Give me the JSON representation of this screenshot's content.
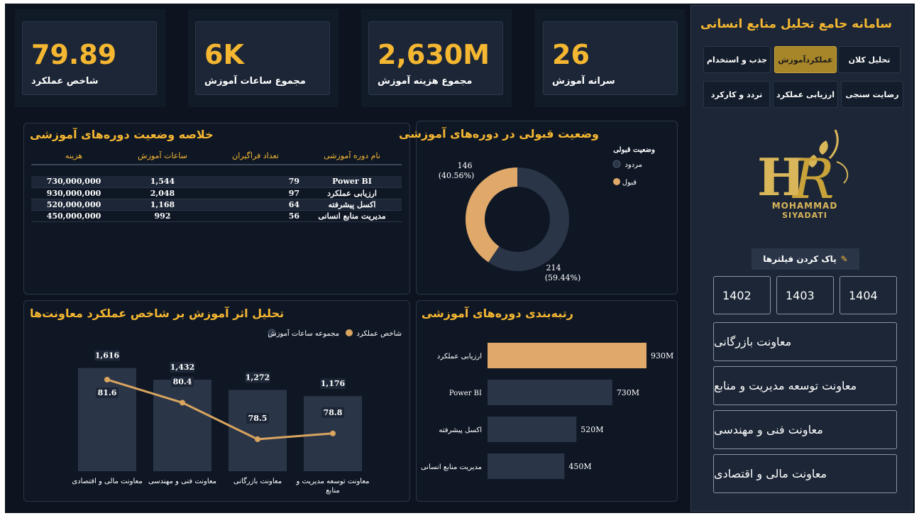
{
  "kpis": [
    {
      "value": "26",
      "label": "سرانه آموزش"
    },
    {
      "value": "2,630M",
      "label": "مجموع هزینه آموزش"
    },
    {
      "value": "6K",
      "label": "مجموع ساعات آموزش"
    },
    {
      "value": "79.89",
      "label": "شاخص عملکرد"
    }
  ],
  "summary": {
    "title": "خلاصه وضعیت دوره‌های آموزشی",
    "headers": [
      "نام دوره آموزشی",
      "تعداد فراگیران",
      "ساعات آموزش",
      "هزینه"
    ],
    "rows": [
      [
        "Power BI",
        "79",
        "1,544",
        "730,000,000"
      ],
      [
        "ارزیابی عملکرد",
        "97",
        "2,048",
        "930,000,000"
      ],
      [
        "اکسل پیشرفته",
        "64",
        "1,168",
        "520,000,000"
      ],
      [
        "مدیریت منابع انسانی",
        "56",
        "992",
        "450,000,000"
      ]
    ]
  },
  "acceptance": {
    "title": "وضعیت قبولی در دوره‌های آموزشی",
    "legend_title": "وضعیت قبولی",
    "legend": [
      {
        "name": "مردود",
        "color": "#2b3548"
      },
      {
        "name": "قبول",
        "color": "#e0a96a"
      }
    ],
    "label_accept_count": "146",
    "label_accept_pct": "(40.56%)",
    "label_reject_count": "214",
    "label_reject_pct": "(59.44%)"
  },
  "impact": {
    "title": "تحلیل اثر آموزش بر شاخص عملکرد معاونت‌ها",
    "legend_perf": "شاخص عملکرد",
    "legend_hours": "مجموعه ساعات آموزش",
    "bar_color": "#2b3548",
    "line_color": "#d9a55f"
  },
  "ranking": {
    "title": "رتبه‌بندی دوره‌های آموزشی",
    "highlight": "#e0a96a",
    "bar_color": "#2b3548"
  },
  "chart_data": [
    {
      "type": "pie",
      "title": "وضعیت قبولی در دوره‌های آموزشی",
      "labels": [
        "مردود",
        "قبول"
      ],
      "values": [
        214,
        146
      ],
      "percentages": [
        59.44,
        40.56
      ],
      "legend": "top-right"
    },
    {
      "type": "bar",
      "title": "تحلیل اثر آموزش بر شاخص عملکرد معاونت‌ها",
      "categories": [
        "معاونت مالی و اقتصادی",
        "معاونت فنی و مهندسی",
        "معاونت بازرگانی",
        "معاونت توسعه مدیریت و منابع"
      ],
      "series": [
        {
          "name": "مجموعه ساعات آموزش",
          "type": "bar",
          "values": [
            1616,
            1432,
            1272,
            1176
          ]
        },
        {
          "name": "شاخص عملکرد",
          "type": "line",
          "values": [
            81.6,
            80.4,
            78.5,
            78.8
          ]
        }
      ],
      "legend": "top"
    },
    {
      "type": "bar",
      "title": "رتبه‌بندی دوره‌های آموزشی",
      "orientation": "horizontal",
      "categories": [
        "ارزیابی عملکرد",
        "Power BI",
        "اکسل پیشرفته",
        "مدیریت منابع انسانی"
      ],
      "values": [
        930,
        730,
        520,
        450
      ],
      "value_labels": [
        "930M",
        "730M",
        "520M",
        "450M"
      ]
    }
  ],
  "sidebar": {
    "title": "سامانه جامع تحلیل منابع انسانی",
    "nav": [
      {
        "label": "تحلیل کلان",
        "active": false
      },
      {
        "label": "عملکردآموزش",
        "active": true
      },
      {
        "label": "جذب و استخدام",
        "active": false
      },
      {
        "label": "رضایت سنجی",
        "active": false
      },
      {
        "label": "ارزیابی عملکرد",
        "active": false
      },
      {
        "label": "تردد و کارکرد",
        "active": false
      }
    ],
    "logo_line1": "MOHAMMAD",
    "logo_line2": "SIYADATI",
    "clear_filters": "پاک کردن فیلترها",
    "years": [
      "1402",
      "1403",
      "1404"
    ],
    "departments": [
      "معاونت بازرگانی",
      "معاونت توسعه مدیریت و منابع",
      "معاونت فنی و مهندسی",
      "معاونت مالی و اقتصادی"
    ]
  }
}
